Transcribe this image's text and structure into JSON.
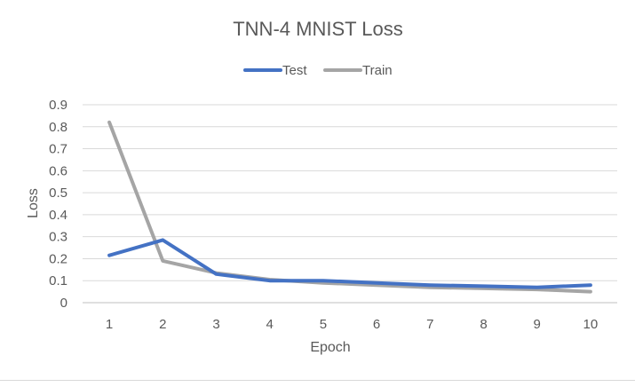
{
  "chart_data": {
    "type": "line",
    "title": "TNN-4 MNIST Loss",
    "xlabel": "Epoch",
    "ylabel": "Loss",
    "categories": [
      "1",
      "2",
      "3",
      "4",
      "5",
      "6",
      "7",
      "8",
      "9",
      "10"
    ],
    "yticks": [
      "0",
      "0.1",
      "0.2",
      "0.3",
      "0.4",
      "0.5",
      "0.6",
      "0.7",
      "0.8",
      "0.9"
    ],
    "ylim": [
      0,
      0.9
    ],
    "grid": true,
    "legend_position": "top",
    "series": [
      {
        "name": "Test",
        "color": "#4472C4",
        "values": [
          0.215,
          0.285,
          0.13,
          0.1,
          0.1,
          0.09,
          0.08,
          0.075,
          0.07,
          0.08
        ]
      },
      {
        "name": "Train",
        "color": "#A5A5A5",
        "values": [
          0.82,
          0.19,
          0.135,
          0.105,
          0.09,
          0.08,
          0.07,
          0.065,
          0.06,
          0.05
        ]
      }
    ]
  }
}
